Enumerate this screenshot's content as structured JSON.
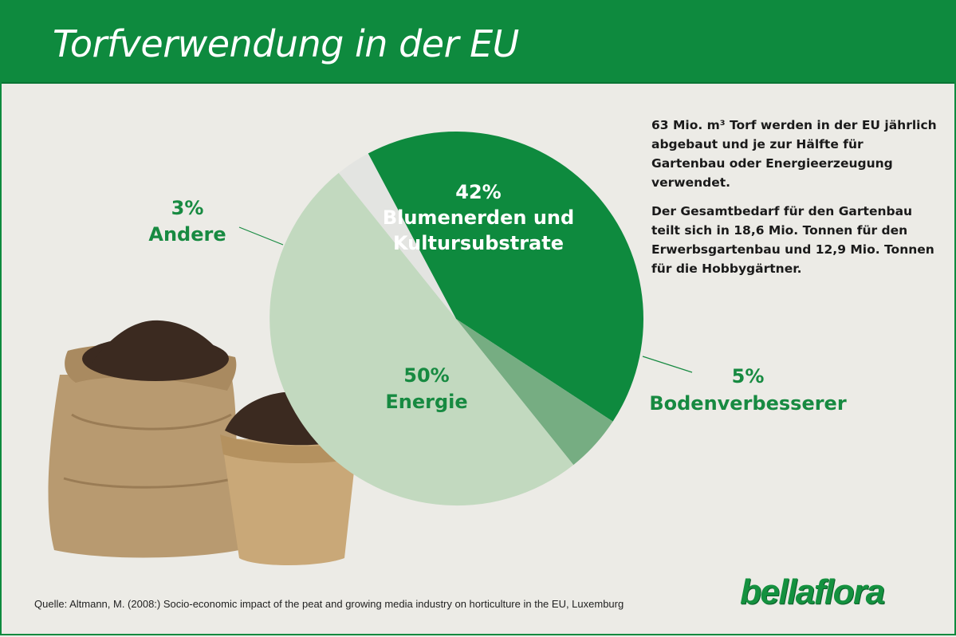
{
  "header": {
    "title": "Torfverwendung in der EU"
  },
  "chart_data": {
    "type": "pie",
    "slices": [
      {
        "id": "blumenerden",
        "percent_label": "42%",
        "name": "Blumenerden und Kultursubstrate",
        "name_lines": [
          "Blumenerden und",
          "Kultursubstrate"
        ],
        "value": 42,
        "color": "#0e8a3e"
      },
      {
        "id": "boden",
        "percent_label": "5%",
        "name": "Bodenverbesserer",
        "name_lines": [
          "Bodenverbesserer"
        ],
        "value": 5,
        "color": "#76ad82"
      },
      {
        "id": "energie",
        "percent_label": "50%",
        "name": "Energie",
        "name_lines": [
          "Energie"
        ],
        "value": 50,
        "color": "#c2d9bf"
      },
      {
        "id": "andere",
        "percent_label": "3%",
        "name": "Andere",
        "name_lines": [
          "Andere"
        ],
        "value": 3,
        "color": "#e3e4e1"
      }
    ]
  },
  "info": {
    "paragraph1": "63 Mio. m³ Torf werden in der EU jährlich abgebaut und je zur Hälfte für Gartenbau oder Energieerzeugung verwendet.",
    "paragraph2": "Der Gesamtbedarf für den Gartenbau teilt sich in 18,6 Mio. Tonnen für den Erwerbsgartenbau und 12,9 Mio. Tonnen für die Hobbygärtner."
  },
  "source": "Quelle: Altmann, M. (2008:) Socio-economic impact of the peat and growing media industry on horticulture in the EU, Luxemburg",
  "logo": "bellaflora",
  "colors": {
    "brand_green": "#0e8a3e",
    "label_green": "#178a41",
    "background": "#ecebe6"
  }
}
